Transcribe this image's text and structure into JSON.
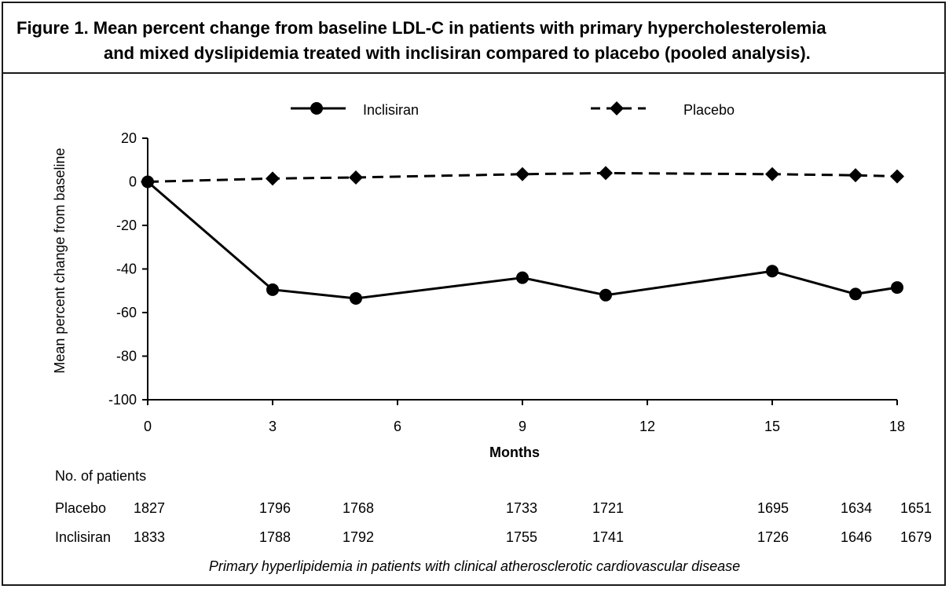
{
  "title": {
    "line1": "Figure 1. Mean percent change from baseline LDL-C in patients with primary hypercholesterolemia",
    "line2": "and mixed dyslipidemia treated with inclisiran compared to placebo (pooled analysis)."
  },
  "chart_data": {
    "type": "line",
    "xlabel": "Months",
    "ylabel": "Mean percent change from baseline",
    "xlim": [
      0,
      18
    ],
    "ylim": [
      -100,
      20
    ],
    "xticks": [
      "0",
      "3",
      "6",
      "9",
      "12",
      "15",
      "18"
    ],
    "yticks": [
      "20",
      "0",
      "-20",
      "-40",
      "-60",
      "-80",
      "-100"
    ],
    "legend_position": "top",
    "grid": false,
    "series": [
      {
        "name": "Inclisiran",
        "style": "solid",
        "marker": "circle",
        "x": [
          0,
          3,
          5,
          9,
          11,
          15,
          17,
          18
        ],
        "y": [
          0,
          -49.5,
          -53.5,
          -44,
          -52,
          -41,
          -51.5,
          -48.5
        ]
      },
      {
        "name": "Placebo",
        "style": "dashed",
        "marker": "diamond",
        "x": [
          0,
          3,
          5,
          9,
          11,
          15,
          17,
          18
        ],
        "y": [
          0,
          1.5,
          2,
          3.5,
          4,
          3.5,
          3,
          2.5
        ]
      }
    ]
  },
  "patients": {
    "header": "No. of patients",
    "rows": [
      {
        "label": "Placebo",
        "counts": [
          "1827",
          "1796",
          "1768",
          "1733",
          "1721",
          "1695",
          "1634",
          "1651"
        ]
      },
      {
        "label": "Inclisiran",
        "counts": [
          "1833",
          "1788",
          "1792",
          "1755",
          "1741",
          "1726",
          "1646",
          "1679"
        ]
      }
    ]
  },
  "footnote": "Primary hyperlipidemia in patients with clinical atherosclerotic cardiovascular disease"
}
